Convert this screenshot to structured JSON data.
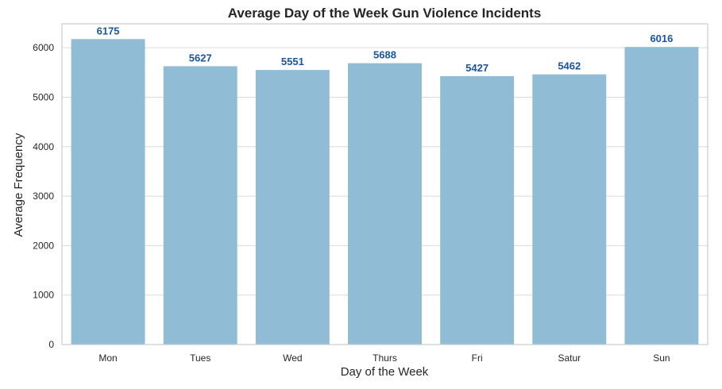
{
  "chart_data": {
    "type": "bar",
    "title": "Average Day of the Week Gun Violence Incidents",
    "xlabel": "Day of the Week",
    "ylabel": "Average Frequency",
    "categories": [
      "Mon",
      "Tues",
      "Wed",
      "Thurs",
      "Fri",
      "Satur",
      "Sun"
    ],
    "values": [
      6175,
      5627,
      5551,
      5688,
      5427,
      5462,
      6016
    ],
    "data_labels": [
      "6175",
      "5627",
      "5551",
      "5688",
      "5427",
      "5462",
      "6016"
    ],
    "yticks": [
      0,
      1000,
      2000,
      3000,
      4000,
      5000,
      6000
    ],
    "ylim": [
      0,
      6484
    ],
    "grid": true,
    "colors": {
      "bar": "#91bcd5",
      "data_label": "#1a55a0",
      "grid": "#d9d9d9",
      "frame": "#cccccc"
    }
  }
}
